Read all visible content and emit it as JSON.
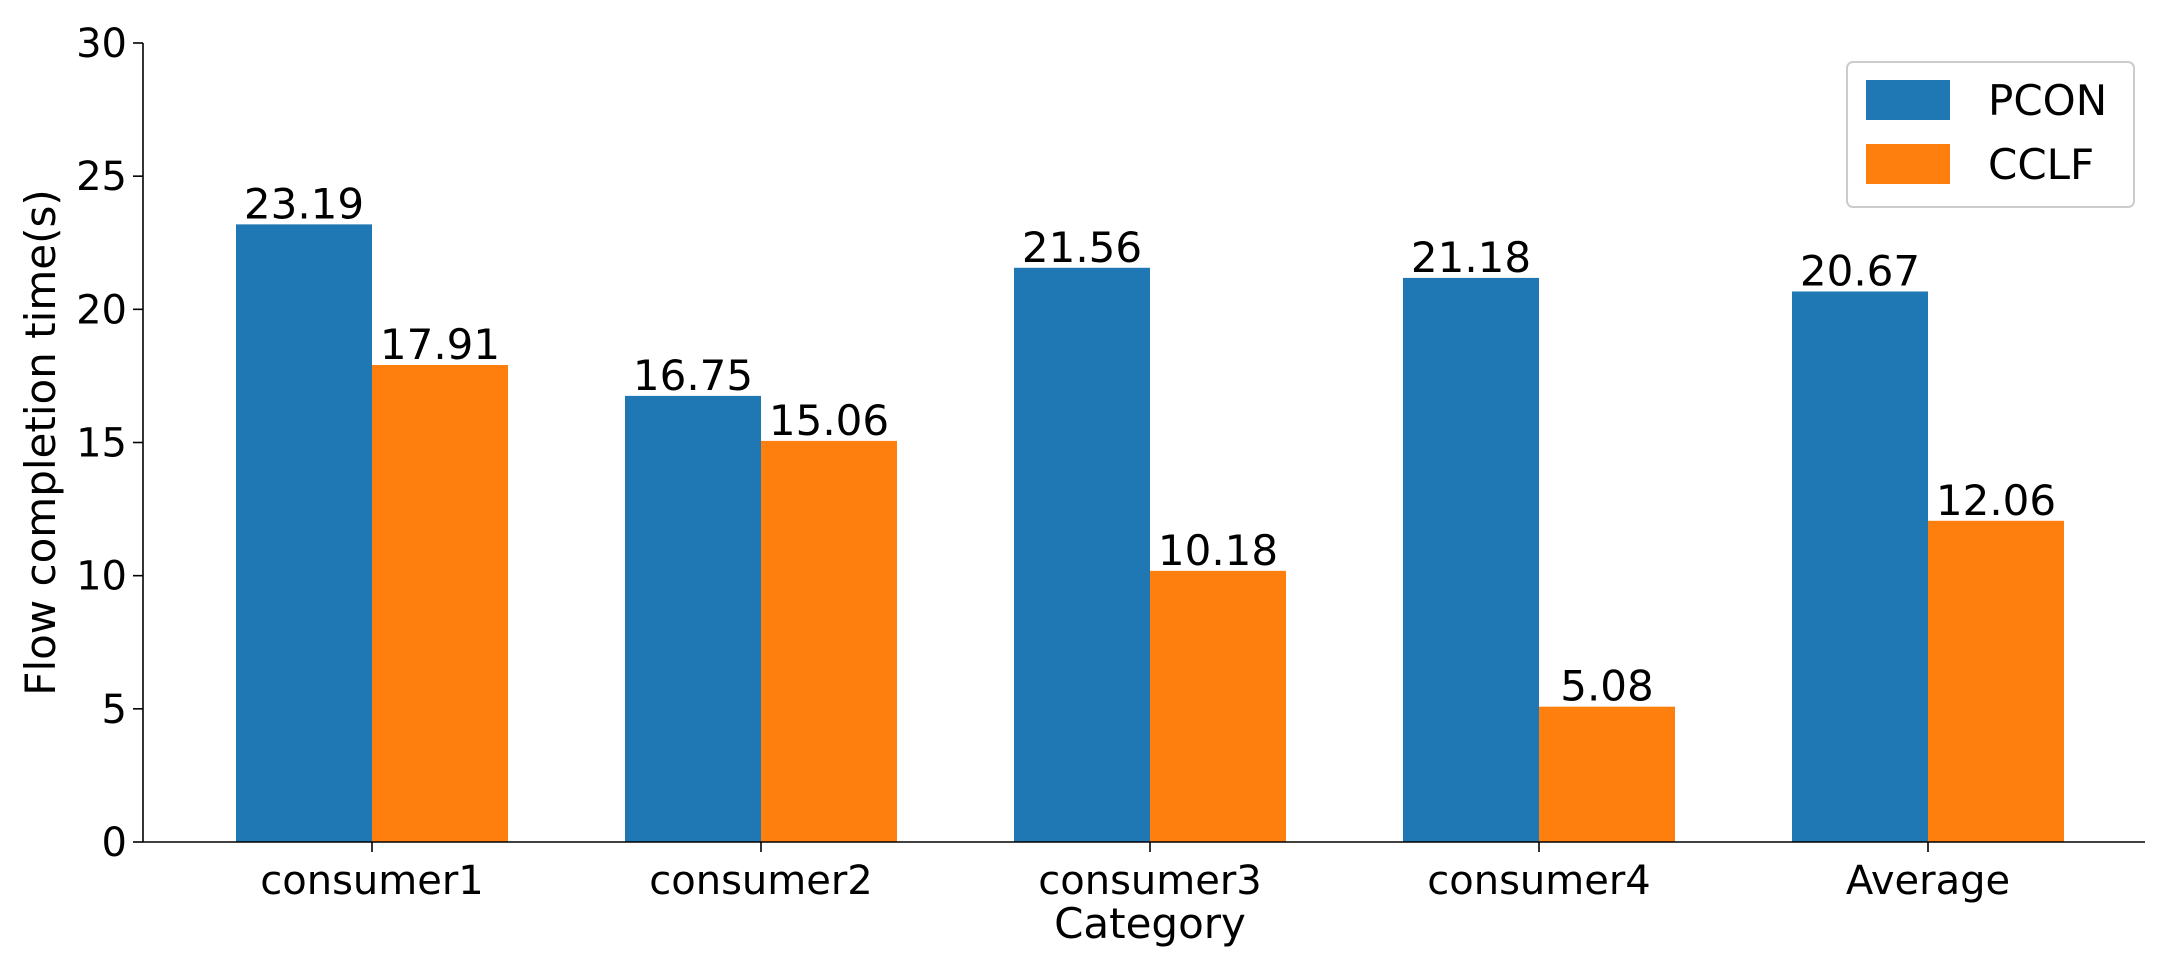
{
  "chart_data": {
    "type": "bar",
    "title": "",
    "xlabel": "Category",
    "ylabel": "Flow completion time(s)",
    "categories": [
      "consumer1",
      "consumer2",
      "consumer3",
      "consumer4",
      "Average"
    ],
    "series": [
      {
        "name": "PCON",
        "color": "#1f77b4",
        "values": [
          23.19,
          16.75,
          21.56,
          21.18,
          20.67
        ],
        "labels": [
          "23.19",
          "16.75",
          "21.56",
          "21.18",
          "20.67"
        ]
      },
      {
        "name": "CCLF",
        "color": "#ff7f0e",
        "values": [
          17.91,
          15.06,
          10.18,
          5.08,
          12.06
        ],
        "labels": [
          "17.91",
          "15.06",
          "10.18",
          "5.08",
          "12.06"
        ]
      }
    ],
    "ylim": [
      0,
      30
    ],
    "yticks": [
      "0",
      "5",
      "10",
      "15",
      "20",
      "25",
      "30"
    ],
    "grid": false,
    "legend": "top-right"
  }
}
